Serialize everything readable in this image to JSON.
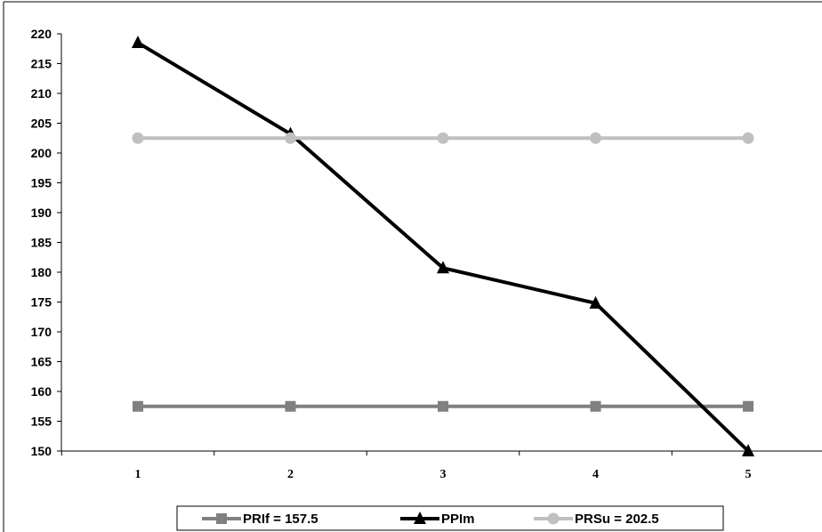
{
  "chart_data": {
    "type": "line",
    "title": "",
    "xlabel": "",
    "ylabel": "",
    "categories": [
      "1",
      "2",
      "3",
      "4",
      "5"
    ],
    "ylim": [
      150,
      220
    ],
    "ytick_step": 5,
    "grid": false,
    "legend_position": "bottom",
    "series": [
      {
        "name": "PRIf = 157.5",
        "values": [
          157.5,
          157.5,
          157.5,
          157.5,
          157.5
        ],
        "color": "#808080",
        "marker": "square"
      },
      {
        "name": "PPIm",
        "values": [
          218.5,
          203.2,
          180.7,
          174.8,
          150.0
        ],
        "color": "#000000",
        "marker": "triangle"
      },
      {
        "name": "PRSu = 202.5",
        "values": [
          202.5,
          202.5,
          202.5,
          202.5,
          202.5
        ],
        "color": "#c0c0c0",
        "marker": "circle"
      }
    ]
  }
}
